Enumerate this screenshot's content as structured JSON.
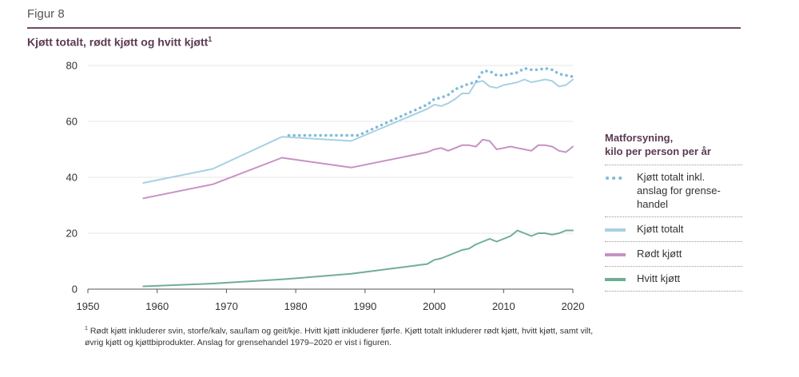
{
  "header": {
    "figure_label": "Figur 8",
    "title": "Kjøtt totalt, rødt kjøtt og hvitt kjøtt",
    "title_sup": "1"
  },
  "legend": {
    "title_line1": "Matforsyning,",
    "title_line2": "kilo per person per år",
    "items": [
      {
        "label": "Kjøtt totalt inkl. anslag for grense-handel",
        "line1": "Kjøtt totalt inkl.",
        "line2": "anslag for grense-",
        "line3": "handel",
        "color": "#7fbbd9",
        "style": "dotted"
      },
      {
        "label": "Kjøtt totalt",
        "color": "#a8d0e3",
        "style": "solid"
      },
      {
        "label": "Rødt kjøtt",
        "color": "#c692c4",
        "style": "solid"
      },
      {
        "label": "Hvitt kjøtt",
        "color": "#6fae94",
        "style": "solid"
      }
    ]
  },
  "footnote": {
    "sup": "1",
    "text": "Rødt kjøtt inkluderer svin, storfe/kalv, sau/lam og geit/kje. Hvitt kjøtt inkluderer fjørfe. Kjøtt totalt inkluderer rødt kjøtt, hvitt kjøtt, samt vilt, øvrig kjøtt og kjøttbiprodukter. Anslag for grensehandel 1979–2020 er vist i figuren."
  },
  "chart_data": {
    "type": "line",
    "title": "Kjøtt totalt, rødt kjøtt og hvitt kjøtt",
    "xlabel": "",
    "ylabel": "Matforsyning, kilo per person per år",
    "xlim": [
      1950,
      2020
    ],
    "ylim": [
      0,
      80
    ],
    "xticks": [
      1950,
      1960,
      1970,
      1980,
      1990,
      2000,
      2010,
      2020
    ],
    "yticks": [
      0,
      20,
      40,
      60,
      80
    ],
    "grid": true,
    "legend_position": "right",
    "series": [
      {
        "name": "Kjøtt totalt inkl. anslag for grensehandel",
        "color": "#7fbbd9",
        "dash": "dotted",
        "x": [
          1979,
          1989,
          1999,
          2000,
          2001,
          2002,
          2003,
          2004,
          2005,
          2006,
          2007,
          2008,
          2009,
          2010,
          2011,
          2012,
          2013,
          2014,
          2015,
          2016,
          2017,
          2018,
          2019,
          2020
        ],
        "y": [
          55,
          55,
          66,
          68,
          68.5,
          69.5,
          71.5,
          72.5,
          73.5,
          74,
          78,
          78,
          76.5,
          76.5,
          77,
          77.5,
          79,
          78.5,
          78.5,
          79,
          78.5,
          77,
          76.5,
          76
        ]
      },
      {
        "name": "Kjøtt totalt",
        "color": "#a8d0e3",
        "dash": "solid",
        "x": [
          1958,
          1968,
          1978,
          1988,
          1999,
          2000,
          2001,
          2002,
          2003,
          2004,
          2005,
          2006,
          2007,
          2008,
          2009,
          2010,
          2011,
          2012,
          2013,
          2014,
          2015,
          2016,
          2017,
          2018,
          2019,
          2020
        ],
        "y": [
          38,
          43,
          54.5,
          53,
          64.5,
          66,
          65.5,
          66.5,
          68,
          70,
          70,
          74,
          74.5,
          72.5,
          72,
          73,
          73.5,
          74,
          75,
          74,
          74.5,
          75,
          74.5,
          72.5,
          73,
          75
        ]
      },
      {
        "name": "Rødt kjøtt",
        "color": "#c692c4",
        "dash": "solid",
        "x": [
          1958,
          1968,
          1978,
          1988,
          1999,
          2000,
          2001,
          2002,
          2003,
          2004,
          2005,
          2006,
          2007,
          2008,
          2009,
          2010,
          2011,
          2012,
          2013,
          2014,
          2015,
          2016,
          2017,
          2018,
          2019,
          2020
        ],
        "y": [
          32.5,
          37.5,
          47,
          43.5,
          49,
          50,
          50.5,
          49.5,
          50.5,
          51.5,
          51.5,
          51,
          53.5,
          53,
          50,
          50.5,
          51,
          50.5,
          50,
          49.5,
          51.5,
          51.5,
          51,
          49.5,
          49,
          51
        ]
      },
      {
        "name": "Hvitt kjøtt",
        "color": "#6fae94",
        "dash": "solid",
        "x": [
          1958,
          1968,
          1978,
          1988,
          1999,
          2000,
          2001,
          2002,
          2003,
          2004,
          2005,
          2006,
          2007,
          2008,
          2009,
          2010,
          2011,
          2012,
          2013,
          2014,
          2015,
          2016,
          2017,
          2018,
          2019,
          2020
        ],
        "y": [
          1,
          2,
          3.5,
          5.5,
          9,
          10.5,
          11,
          12,
          13,
          14,
          14.5,
          16,
          17,
          18,
          17,
          18,
          19,
          21,
          20,
          19,
          20,
          20,
          19.5,
          20,
          21,
          21
        ]
      }
    ]
  }
}
